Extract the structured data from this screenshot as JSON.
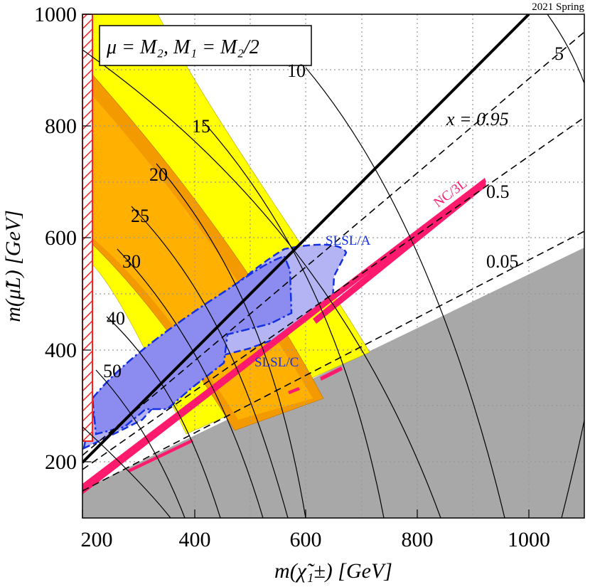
{
  "corner_note": "2021 Spring",
  "legend_box_text": "μ = M₂,  M₁ = M₂/2",
  "colors": {
    "yellow": "#ffff00",
    "orange_light": "#ffb000",
    "orange_dark": "#f39a00",
    "gray": "#a8a8a8",
    "blue_fill": "#8c8cf0",
    "blue_light_fill": "#b4b4f5",
    "blue_line": "#1530e0",
    "magenta": "#ff1a6e",
    "red_hatch": "#ff2020"
  },
  "chart_data": {
    "type": "contour",
    "xlabel": "m(χ̃₁±) [GeV]",
    "ylabel": "m(μ̃L) [GeV]",
    "xlim": [
      200,
      1100
    ],
    "ylim": [
      100,
      1000
    ],
    "x_ticks": [
      200,
      400,
      600,
      800,
      1000
    ],
    "y_ticks": [
      200,
      400,
      600,
      800,
      1000
    ],
    "x_tick_labels": [
      "200",
      "400",
      "600",
      "800",
      "1000"
    ],
    "y_tick_labels": [
      "200",
      "400",
      "600",
      "800",
      "1000"
    ],
    "grid": true,
    "contour_labels": [
      "10",
      "15",
      "20",
      "25",
      "30",
      "40",
      "50",
      "5"
    ],
    "x_lines": [
      "x = 0.95",
      "0.5",
      "0.05"
    ],
    "region_labels": {
      "slsl_a": "SLSL/A",
      "slsl_c": "SLSL/C",
      "nc3l": "NC/3L"
    }
  }
}
